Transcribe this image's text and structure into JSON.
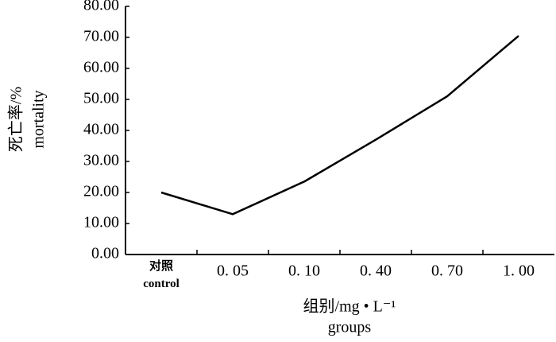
{
  "chart_data": {
    "type": "line",
    "categories": [
      "对照\ncontrol",
      "0. 05",
      "0. 10",
      "0. 40",
      "0. 70",
      "1. 00"
    ],
    "series": [
      {
        "name": "mortality",
        "color": "#000000",
        "values": [
          20,
          13,
          23.5,
          37,
          51,
          70.5
        ]
      }
    ],
    "ylim": [
      0,
      80
    ],
    "yticks": [
      {
        "value": 0,
        "label": "0.00"
      },
      {
        "value": 10,
        "label": "10.00"
      },
      {
        "value": 20,
        "label": "20.00"
      },
      {
        "value": 30,
        "label": "30.00"
      },
      {
        "value": 40,
        "label": "40.00"
      },
      {
        "value": 50,
        "label": "50.00"
      },
      {
        "value": 60,
        "label": "60.00"
      },
      {
        "value": 70,
        "label": "70.00"
      },
      {
        "value": 80,
        "label": "80.00"
      }
    ],
    "y_label": [
      "死亡率/%",
      "mortality"
    ],
    "x_label": [
      "组别/mg • L⁻¹",
      "groups"
    ],
    "grid": false
  }
}
